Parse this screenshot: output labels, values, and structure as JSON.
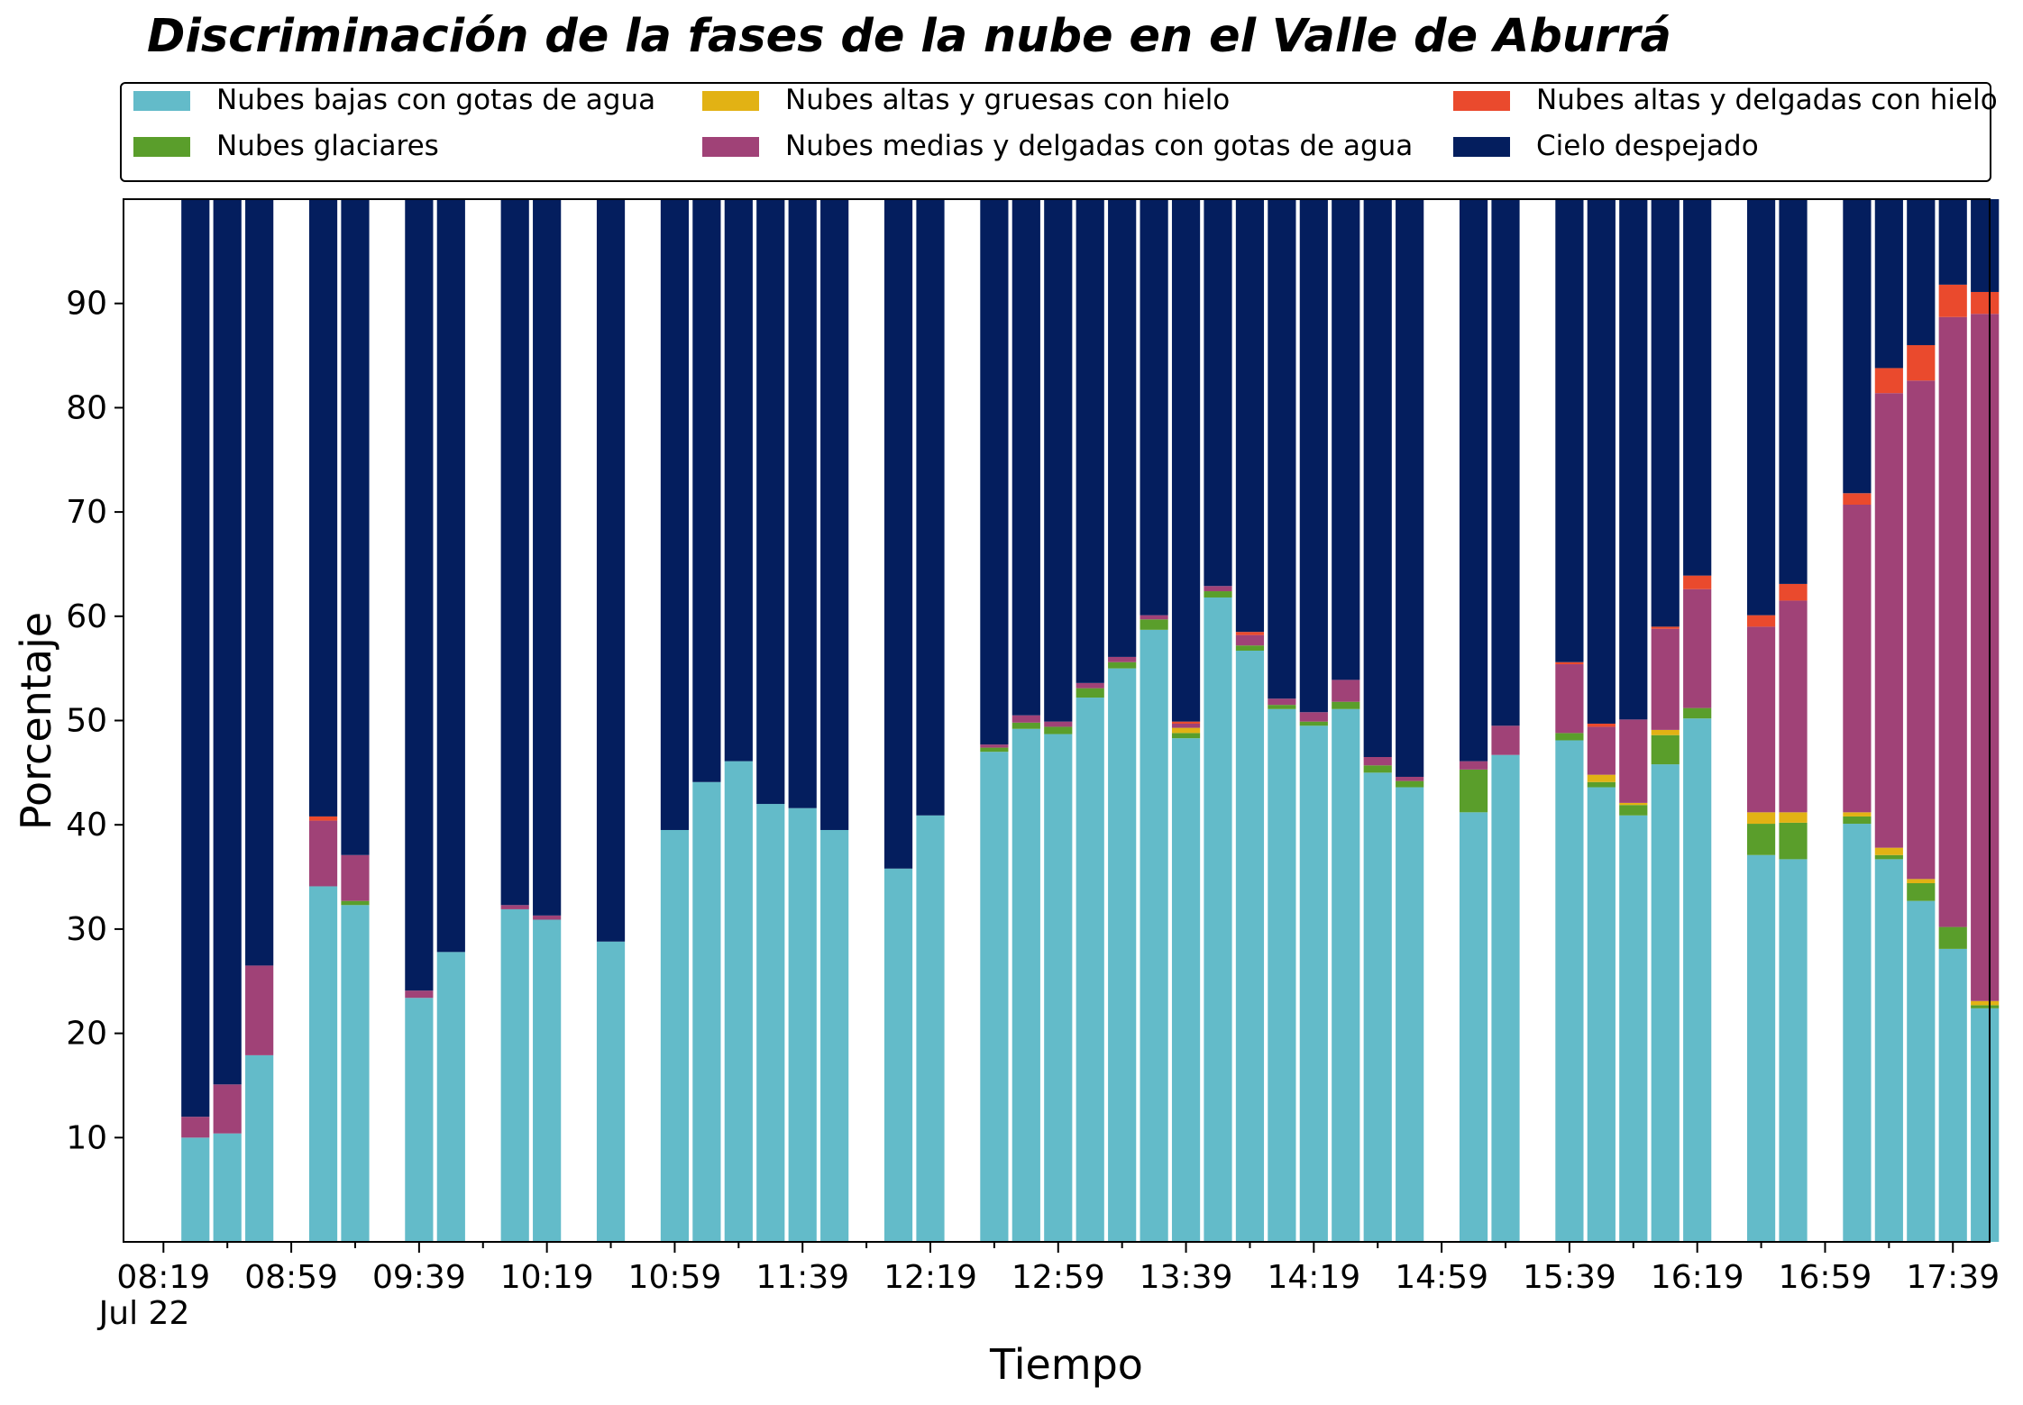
{
  "chart_data": {
    "type": "bar",
    "stacked": true,
    "title": "Discriminación de la fases de la nube en el Valle de Aburrá",
    "xlabel": "Tiempo",
    "ylabel": "Porcentaje",
    "ylim": [
      0,
      100
    ],
    "yticks": [
      10,
      20,
      30,
      40,
      50,
      60,
      70,
      80,
      90
    ],
    "x_tick_labels": [
      "08:19",
      "08:59",
      "09:39",
      "10:19",
      "10:59",
      "11:39",
      "12:19",
      "12:59",
      "13:39",
      "14:19",
      "14:59",
      "15:39",
      "16:19",
      "16:59",
      "17:39"
    ],
    "x_tick_positions": [
      0,
      4,
      8,
      12,
      16,
      20,
      24,
      28,
      32,
      36,
      40,
      44,
      48,
      52,
      56
    ],
    "x_date_label": "Jul 22",
    "x_range": [
      -1.25,
      57.15
    ],
    "grid": false,
    "legend": {
      "placement": "top",
      "columns": 3
    },
    "series": [
      {
        "name": "Nubes bajas con gotas de agua",
        "color": "#63BBC9"
      },
      {
        "name": "Nubes glaciares",
        "color": "#5A9E2B"
      },
      {
        "name": "Nubes altas y gruesas con hielo",
        "color": "#E2B214"
      },
      {
        "name": "Nubes medias y delgadas con gotas de agua",
        "color": "#A04277"
      },
      {
        "name": "Nubes altas y delgadas con hielo",
        "color": "#EA4A2D"
      },
      {
        "name": "Cielo despejado",
        "color": "#041E5E"
      }
    ],
    "bars": [
      {
        "x": 1,
        "values": [
          10,
          0,
          0,
          2,
          0,
          88
        ]
      },
      {
        "x": 2,
        "values": [
          10.4,
          0,
          0,
          4.7,
          0,
          84.9
        ]
      },
      {
        "x": 3,
        "values": [
          17.9,
          0,
          0,
          8.6,
          0,
          73.5
        ]
      },
      {
        "x": 5,
        "values": [
          34.1,
          0,
          0,
          6.3,
          0.4,
          59.2
        ]
      },
      {
        "x": 6,
        "values": [
          32.3,
          0.4,
          0,
          4.4,
          0,
          62.9
        ]
      },
      {
        "x": 8,
        "values": [
          23.4,
          0,
          0,
          0.7,
          0,
          75.9
        ]
      },
      {
        "x": 9,
        "values": [
          27.8,
          0,
          0,
          0,
          0,
          72.2
        ]
      },
      {
        "x": 11,
        "values": [
          31.9,
          0,
          0,
          0.4,
          0,
          67.7
        ]
      },
      {
        "x": 12,
        "values": [
          30.9,
          0,
          0,
          0.4,
          0,
          68.7
        ]
      },
      {
        "x": 14,
        "values": [
          28.8,
          0,
          0,
          0,
          0,
          71.2
        ]
      },
      {
        "x": 16,
        "values": [
          39.5,
          0,
          0,
          0,
          0,
          60.5
        ]
      },
      {
        "x": 17,
        "values": [
          44.1,
          0,
          0,
          0,
          0,
          55.9
        ]
      },
      {
        "x": 18,
        "values": [
          46.1,
          0,
          0,
          0,
          0,
          53.9
        ]
      },
      {
        "x": 19,
        "values": [
          42,
          0,
          0,
          0,
          0,
          58
        ]
      },
      {
        "x": 20,
        "values": [
          41.6,
          0,
          0,
          0,
          0,
          58.4
        ]
      },
      {
        "x": 21,
        "values": [
          39.5,
          0,
          0,
          0,
          0,
          60.5
        ]
      },
      {
        "x": 23,
        "values": [
          35.8,
          0,
          0,
          0,
          0,
          64.2
        ]
      },
      {
        "x": 24,
        "values": [
          40.9,
          0,
          0,
          0,
          0,
          59.1
        ]
      },
      {
        "x": 26,
        "values": [
          47,
          0.4,
          0,
          0.3,
          0,
          52.3
        ]
      },
      {
        "x": 27,
        "values": [
          49.2,
          0.6,
          0,
          0.7,
          0,
          49.5
        ]
      },
      {
        "x": 28,
        "values": [
          48.7,
          0.7,
          0,
          0.5,
          0,
          50.1
        ]
      },
      {
        "x": 29,
        "values": [
          52.2,
          0.9,
          0,
          0.5,
          0,
          46.4
        ]
      },
      {
        "x": 30,
        "values": [
          55,
          0.6,
          0,
          0.5,
          0,
          43.9
        ]
      },
      {
        "x": 31,
        "values": [
          58.7,
          1,
          0,
          0.4,
          0,
          39.9
        ]
      },
      {
        "x": 32,
        "values": [
          48.3,
          0.5,
          0.5,
          0.4,
          0.2,
          50.1
        ]
      },
      {
        "x": 33,
        "values": [
          61.8,
          0.6,
          0,
          0.5,
          0,
          37.1
        ]
      },
      {
        "x": 34,
        "values": [
          56.7,
          0.5,
          0,
          1,
          0.3,
          41.5
        ]
      },
      {
        "x": 35,
        "values": [
          51.1,
          0.4,
          0,
          0.6,
          0,
          47.9
        ]
      },
      {
        "x": 36,
        "values": [
          49.5,
          0.4,
          0,
          0.9,
          0,
          49.2
        ]
      },
      {
        "x": 37,
        "values": [
          51.1,
          0.7,
          0,
          2.1,
          0,
          46.1
        ]
      },
      {
        "x": 38,
        "values": [
          45,
          0.7,
          0,
          0.8,
          0,
          53.5
        ]
      },
      {
        "x": 39,
        "values": [
          43.6,
          0.6,
          0,
          0.4,
          0,
          55.4
        ]
      },
      {
        "x": 41,
        "values": [
          41.2,
          4.1,
          0,
          0.8,
          0,
          53.9
        ]
      },
      {
        "x": 42,
        "values": [
          46.7,
          0,
          0,
          2.8,
          0,
          50.5
        ]
      },
      {
        "x": 44,
        "values": [
          48.1,
          0.7,
          0,
          6.6,
          0.2,
          44.4
        ]
      },
      {
        "x": 45,
        "values": [
          43.6,
          0.5,
          0.7,
          4.6,
          0.3,
          50.3
        ]
      },
      {
        "x": 46,
        "values": [
          40.9,
          1,
          0.2,
          8,
          0,
          49.9
        ]
      },
      {
        "x": 47,
        "values": [
          45.8,
          2.8,
          0.5,
          9.7,
          0.2,
          41
        ]
      },
      {
        "x": 48,
        "values": [
          50.2,
          1,
          0,
          11.4,
          1.3,
          36.1
        ]
      },
      {
        "x": 50,
        "values": [
          37.1,
          3,
          1.1,
          17.8,
          1.1,
          39.9
        ]
      },
      {
        "x": 51,
        "values": [
          36.7,
          3.5,
          1,
          20.3,
          1.6,
          36.9
        ]
      },
      {
        "x": 53,
        "values": [
          40.1,
          0.7,
          0.4,
          29.5,
          1.1,
          28.2
        ]
      },
      {
        "x": 54,
        "values": [
          36.7,
          0.4,
          0.7,
          43.6,
          2.4,
          16.2
        ]
      },
      {
        "x": 55,
        "values": [
          32.7,
          1.7,
          0.4,
          47.8,
          3.4,
          14
        ]
      },
      {
        "x": 56,
        "values": [
          28.1,
          2.1,
          0,
          58.5,
          3.1,
          8.2
        ]
      },
      {
        "x": 57,
        "values": [
          22.4,
          0.3,
          0.4,
          65.9,
          2.1,
          8.9
        ]
      }
    ]
  }
}
